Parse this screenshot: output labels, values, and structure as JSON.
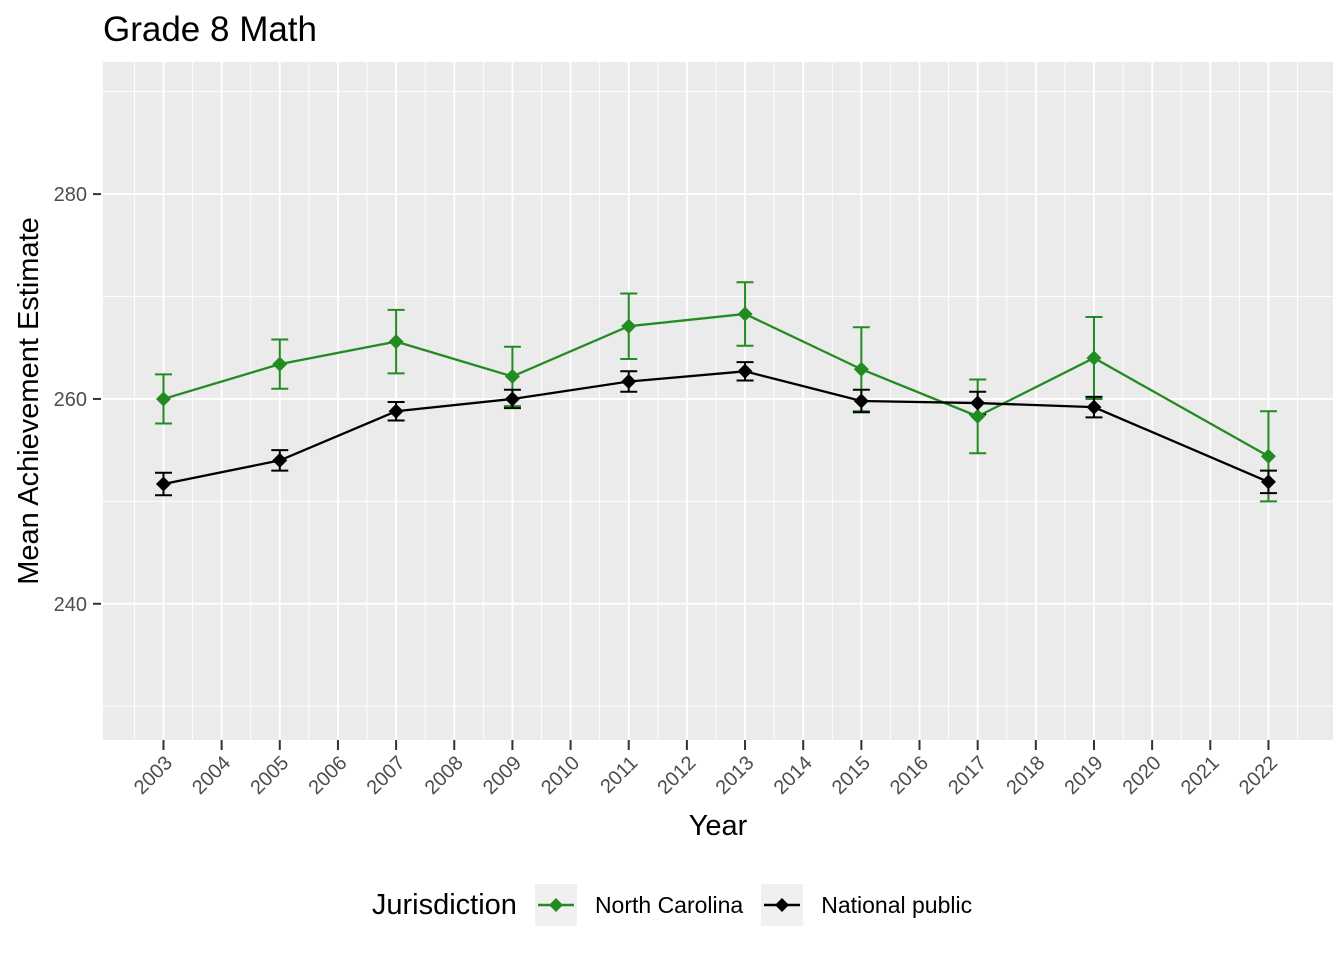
{
  "chart_data": {
    "type": "line",
    "title": "Grade 8 Math",
    "xlabel": "Year",
    "ylabel": "Mean Achievement Estimate",
    "legend": {
      "title": "Jurisdiction",
      "position": "bottom"
    },
    "panel_bg": "#EBEBEB",
    "grid": {
      "major_color": "#FFFFFF",
      "minor_color": "#FFFFFF",
      "major_width": 1.8,
      "minor_width": 0.9
    },
    "tick_color": "#333333",
    "tick_label_color": "#4D4D4D",
    "axis": {
      "x_ticks": [
        2003,
        2004,
        2005,
        2006,
        2007,
        2008,
        2009,
        2010,
        2011,
        2012,
        2013,
        2014,
        2015,
        2016,
        2017,
        2018,
        2019,
        2020,
        2021,
        2022
      ],
      "x_minor": [
        2002.5,
        2003.5,
        2004.5,
        2005.5,
        2006.5,
        2007.5,
        2008.5,
        2009.5,
        2010.5,
        2011.5,
        2012.5,
        2013.5,
        2014.5,
        2015.5,
        2016.5,
        2017.5,
        2018.5,
        2019.5,
        2020.5,
        2021.5,
        2022.5
      ],
      "y_ticks": [
        240,
        260,
        280
      ],
      "y_minor": [
        230,
        250,
        270,
        290
      ],
      "x_range": [
        2001.96,
        2023.11
      ],
      "y_range": [
        226.7,
        292.9
      ]
    },
    "series": [
      {
        "name": "North Carolina",
        "color": "#228B22",
        "years": [
          2003,
          2005,
          2007,
          2009,
          2011,
          2013,
          2015,
          2017,
          2019,
          2022
        ],
        "values": [
          260.0,
          263.4,
          265.6,
          262.2,
          267.1,
          268.3,
          262.9,
          258.3,
          264.0,
          254.4
        ],
        "errors": [
          2.4,
          2.4,
          3.1,
          2.9,
          3.2,
          3.1,
          4.1,
          3.6,
          4.0,
          4.4
        ]
      },
      {
        "name": "National public",
        "color": "#000000",
        "years": [
          2003,
          2005,
          2007,
          2009,
          2011,
          2013,
          2015,
          2017,
          2019,
          2022
        ],
        "values": [
          251.7,
          254.0,
          258.8,
          260.0,
          261.7,
          262.7,
          259.8,
          259.6,
          259.2,
          251.9
        ],
        "errors": [
          1.1,
          1.0,
          0.9,
          0.9,
          1.0,
          0.9,
          1.1,
          1.1,
          1.0,
          1.1
        ]
      }
    ]
  }
}
